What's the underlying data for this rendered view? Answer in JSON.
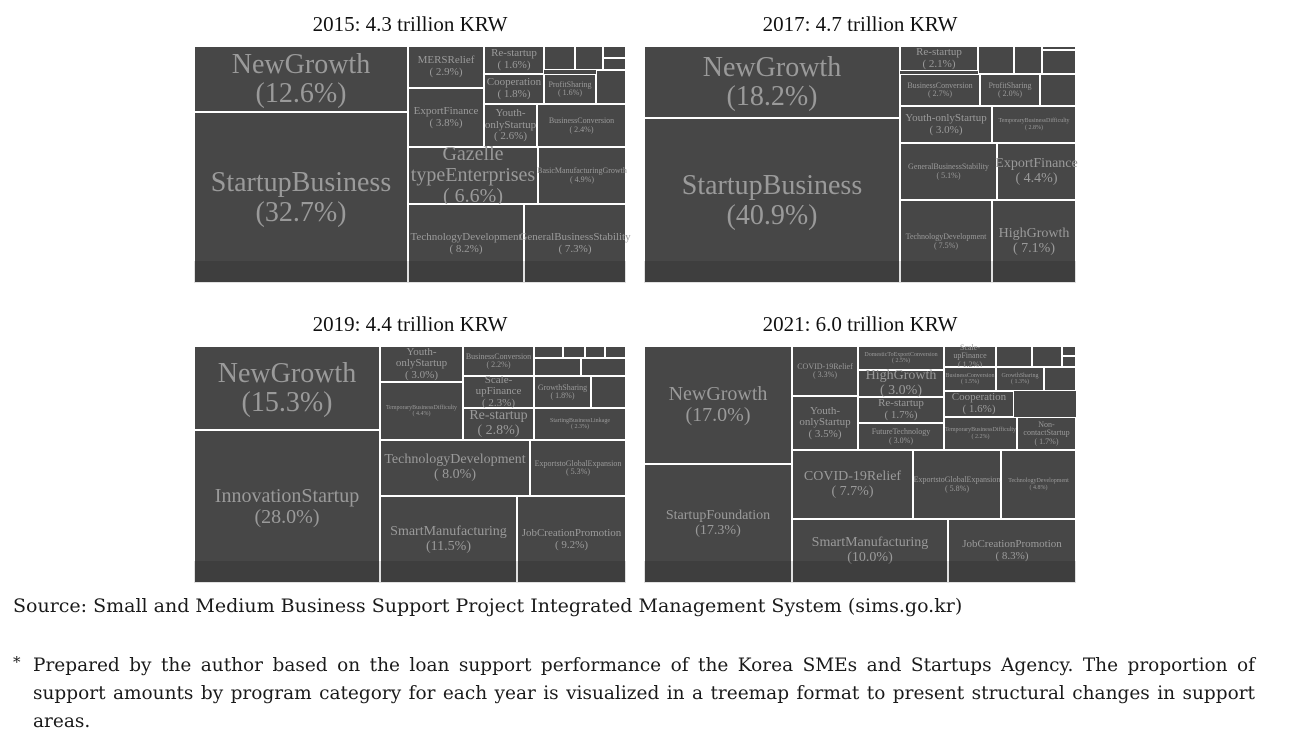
{
  "chart_data": [
    {
      "type": "treemap",
      "title": "2015: 4.3 trillion KRW",
      "nodes": [
        {
          "name": "StartupBusiness",
          "value": 32.7
        },
        {
          "name": "NewGrowth",
          "value": 12.6
        },
        {
          "name": "TechnologyDevelopment",
          "value": 8.2
        },
        {
          "name": "GeneralBusinessStability",
          "value": 7.3
        },
        {
          "name": "Gazelle typeEnterprises",
          "value": 6.6
        },
        {
          "name": "BasicManufacturingGrowth",
          "value": 4.9
        },
        {
          "name": "ExportFinance",
          "value": 3.8
        },
        {
          "name": "MERSRelief",
          "value": 2.9
        },
        {
          "name": "Youth-onlyStartup",
          "value": 2.6
        },
        {
          "name": "BusinessConversion",
          "value": 2.4
        },
        {
          "name": "Cooperation",
          "value": 1.8
        },
        {
          "name": "Re-startup",
          "value": 1.6
        },
        {
          "name": "ProfitSharing",
          "value": 1.6
        }
      ]
    },
    {
      "type": "treemap",
      "title": "2017: 4.7 trillion KRW",
      "nodes": [
        {
          "name": "StartupBusiness",
          "value": 40.9
        },
        {
          "name": "NewGrowth",
          "value": 18.2
        },
        {
          "name": "TechnologyDevelopment",
          "value": 7.5
        },
        {
          "name": "HighGrowth",
          "value": 7.1
        },
        {
          "name": "GeneralBusinessStability",
          "value": 5.1
        },
        {
          "name": "ExportFinance",
          "value": 4.4
        },
        {
          "name": "Youth-onlyStartup",
          "value": 3.0
        },
        {
          "name": "TemporaryBusinessDifficulty",
          "value": 2.8
        },
        {
          "name": "BusinessConversion",
          "value": 2.7
        },
        {
          "name": "Re-startup",
          "value": 2.1
        },
        {
          "name": "ProfitSharing",
          "value": 2.0
        }
      ]
    },
    {
      "type": "treemap",
      "title": "2019: 4.4 trillion KRW",
      "nodes": [
        {
          "name": "InnovationStartup",
          "value": 28.0
        },
        {
          "name": "NewGrowth",
          "value": 15.3
        },
        {
          "name": "SmartManufacturing",
          "value": 11.5
        },
        {
          "name": "JobCreationPromotion",
          "value": 9.2
        },
        {
          "name": "TechnologyDevelopment",
          "value": 8.0
        },
        {
          "name": "ExportstoGlobalExpansion",
          "value": 5.3
        },
        {
          "name": "TemporaryBusinessDifficulty",
          "value": 4.4
        },
        {
          "name": "Youth-onlyStartup",
          "value": 3.0
        },
        {
          "name": "Re-startup",
          "value": 2.8
        },
        {
          "name": "Scale-upFinance",
          "value": 2.3
        },
        {
          "name": "StartingBusinessLinkage",
          "value": 2.3
        },
        {
          "name": "BusinessConversion",
          "value": 2.2
        },
        {
          "name": "GrowthSharing",
          "value": 1.8
        }
      ]
    },
    {
      "type": "treemap",
      "title": "2021: 6.0 trillion KRW",
      "nodes": [
        {
          "name": "StartupFoundation",
          "value": 17.3
        },
        {
          "name": "NewGrowth",
          "value": 17.0
        },
        {
          "name": "SmartManufacturing",
          "value": 10.0
        },
        {
          "name": "JobCreationPromotion",
          "value": 8.3
        },
        {
          "name": "COVID-19Relief",
          "value": 7.7
        },
        {
          "name": "ExportstoGlobalExpansion",
          "value": 5.8
        },
        {
          "name": "TechnologyDevelopment",
          "value": 4.8
        },
        {
          "name": "Youth-onlyStartup",
          "value": 3.5
        },
        {
          "name": "COVID-19Relief",
          "value": 3.3
        },
        {
          "name": "HighGrowth",
          "value": 3.0
        },
        {
          "name": "FutureTechnology",
          "value": 3.0
        },
        {
          "name": "DomesticToExportConversion",
          "value": 2.5
        },
        {
          "name": "TemporaryBusinessDifficulty",
          "value": 2.2
        },
        {
          "name": "Re-startup",
          "value": 1.7
        },
        {
          "name": "Non-contactStartup",
          "value": 1.7
        },
        {
          "name": "Cooperation",
          "value": 1.6
        },
        {
          "name": "BusinessConversion",
          "value": 1.5
        },
        {
          "name": "GrowthSharing",
          "value": 1.3
        },
        {
          "name": "Scale-upFinance",
          "value": 1.2
        }
      ]
    }
  ],
  "panels": [
    {
      "title": "2015: 4.3 trillion KRW",
      "tiles": [
        {
          "label": "NewGrowth",
          "value": "(12.6%)",
          "tier": 1
        },
        {
          "label": "StartupBusiness",
          "value": "(32.7%)",
          "tier": 1
        },
        {
          "label": "MERSRelief",
          "value": "( 2.9%)",
          "tier": 4
        },
        {
          "label": "Re-startup",
          "value": "( 1.6%)",
          "tier": 4
        },
        {
          "label": "",
          "value": "",
          "tier": 0
        },
        {
          "label": "",
          "value": "",
          "tier": 0
        },
        {
          "label": "",
          "value": "",
          "tier": 0
        },
        {
          "label": "",
          "value": "",
          "tier": 0
        },
        {
          "label": "Cooperation",
          "value": "( 1.8%)",
          "tier": 4
        },
        {
          "label": "ProfitSharing",
          "value": "( 1.6%)",
          "tier": 5
        },
        {
          "label": "",
          "value": "",
          "tier": 0
        },
        {
          "label": "ExportFinance",
          "value": "( 3.8%)",
          "tier": 4
        },
        {
          "label": "Youth-\nonlyStartup",
          "value": "( 2.6%)",
          "tier": 4
        },
        {
          "label": "BusinessConversion",
          "value": "( 2.4%)",
          "tier": 5
        },
        {
          "label": "Gazelle\ntypeEnterprises",
          "value": "( 6.6%)",
          "tier": 2
        },
        {
          "label": "BasicManufacturingGrowth",
          "value": "( 4.9%)",
          "tier": 5
        },
        {
          "label": "TechnologyDevelopment",
          "value": "( 8.2%)",
          "tier": 4
        },
        {
          "label": "GeneralBusinessStability",
          "value": "( 7.3%)",
          "tier": 4
        }
      ]
    },
    {
      "title": "2017: 4.7 trillion KRW",
      "tiles": [
        {
          "label": "NewGrowth",
          "value": "(18.2%)",
          "tier": 1
        },
        {
          "label": "StartupBusiness",
          "value": "(40.9%)",
          "tier": 1
        },
        {
          "label": "Re-startup",
          "value": "( 2.1%)",
          "tier": 4
        },
        {
          "label": "",
          "value": "",
          "tier": 0
        },
        {
          "label": "",
          "value": "",
          "tier": 0
        },
        {
          "label": "",
          "value": "",
          "tier": 0
        },
        {
          "label": "",
          "value": "",
          "tier": 0
        },
        {
          "label": "BusinessConversion",
          "value": "( 2.7%)",
          "tier": 5
        },
        {
          "label": "ProfitSharing",
          "value": "( 2.0%)",
          "tier": 5
        },
        {
          "label": "",
          "value": "",
          "tier": 0
        },
        {
          "label": "Youth-onlyStartup",
          "value": "( 3.0%)",
          "tier": 4
        },
        {
          "label": "TemporaryBusinessDifficulty",
          "value": "( 2.8%)",
          "tier": 6
        },
        {
          "label": "GeneralBusinessStability",
          "value": "( 5.1%)",
          "tier": 5
        },
        {
          "label": "ExportFinance",
          "value": "( 4.4%)",
          "tier": 3
        },
        {
          "label": "TechnologyDevelopment",
          "value": "( 7.5%)",
          "tier": 5
        },
        {
          "label": "HighGrowth",
          "value": "( 7.1%)",
          "tier": 3
        }
      ]
    },
    {
      "title": "2019: 4.4 trillion KRW",
      "tiles": [
        {
          "label": "NewGrowth",
          "value": "(15.3%)",
          "tier": 1
        },
        {
          "label": "InnovationStartup",
          "value": "(28.0%)",
          "tier": 2
        },
        {
          "label": "Youth-\nonlyStartup",
          "value": "( 3.0%)",
          "tier": 4
        },
        {
          "label": "TemporaryBusinessDifficulty",
          "value": "( 4.4%)",
          "tier": 6
        },
        {
          "label": "BusinessConversion",
          "value": "( 2.2%)",
          "tier": 5
        },
        {
          "label": "",
          "value": "",
          "tier": 0
        },
        {
          "label": "",
          "value": "",
          "tier": 0
        },
        {
          "label": "",
          "value": "",
          "tier": 0
        },
        {
          "label": "",
          "value": "",
          "tier": 0
        },
        {
          "label": "",
          "value": "",
          "tier": 0
        },
        {
          "label": "",
          "value": "",
          "tier": 0
        },
        {
          "label": "Scale-upFinance",
          "value": "( 2.3%)",
          "tier": 4
        },
        {
          "label": "GrowthSharing",
          "value": "( 1.8%)",
          "tier": 5
        },
        {
          "label": "",
          "value": "",
          "tier": 0
        },
        {
          "label": "Re-startup",
          "value": "( 2.8%)",
          "tier": 3
        },
        {
          "label": "StartingBusinessLinkage",
          "value": "( 2.3%)",
          "tier": 6
        },
        {
          "label": "TechnologyDevelopment",
          "value": "( 8.0%)",
          "tier": 3
        },
        {
          "label": "ExportstoGlobalExpansion",
          "value": "( 5.3%)",
          "tier": 5
        },
        {
          "label": "SmartManufacturing",
          "value": "(11.5%)",
          "tier": 3
        },
        {
          "label": "JobCreationPromotion",
          "value": "( 9.2%)",
          "tier": 4
        }
      ]
    },
    {
      "title": "2021: 6.0 trillion KRW",
      "tiles": [
        {
          "label": "NewGrowth",
          "value": "(17.0%)",
          "tier": 2
        },
        {
          "label": "StartupFoundation",
          "value": "(17.3%)",
          "tier": 3
        },
        {
          "label": "COVID-19Relief",
          "value": "( 3.3%)",
          "tier": 5
        },
        {
          "label": "DomesticToExportConversion",
          "value": "( 2.5%)",
          "tier": 6
        },
        {
          "label": "Scale-upFinance",
          "value": "( 1.2%)",
          "tier": 5
        },
        {
          "label": "",
          "value": "",
          "tier": 0
        },
        {
          "label": "",
          "value": "",
          "tier": 0
        },
        {
          "label": "",
          "value": "",
          "tier": 0
        },
        {
          "label": "",
          "value": "",
          "tier": 0
        },
        {
          "label": "HighGrowth",
          "value": "( 3.0%)",
          "tier": 3
        },
        {
          "label": "BusinessConversion",
          "value": "( 1.5%)",
          "tier": 6
        },
        {
          "label": "GrowthSharing",
          "value": "( 1.3%)",
          "tier": 6
        },
        {
          "label": "",
          "value": "",
          "tier": 0
        },
        {
          "label": "Youth-\nonlyStartup",
          "value": "( 3.5%)",
          "tier": 4
        },
        {
          "label": "Re-startup",
          "value": "( 1.7%)",
          "tier": 4
        },
        {
          "label": "Cooperation",
          "value": "( 1.6%)",
          "tier": 4
        },
        {
          "label": "FutureTechnology",
          "value": "( 3.0%)",
          "tier": 5
        },
        {
          "label": "TemporaryBusinessDifficulty",
          "value": "( 2.2%)",
          "tier": 6
        },
        {
          "label": "Non-\ncontactStartup",
          "value": "( 1.7%)",
          "tier": 5
        },
        {
          "label": "COVID-19Relief",
          "value": "( 7.7%)",
          "tier": 3
        },
        {
          "label": "ExportstoGlobalExpansion",
          "value": "( 5.8%)",
          "tier": 5
        },
        {
          "label": "TechnologyDevelopment",
          "value": "( 4.8%)",
          "tier": 6
        },
        {
          "label": "SmartManufacturing",
          "value": "(10.0%)",
          "tier": 3
        },
        {
          "label": "JobCreationPromotion",
          "value": "( 8.3%)",
          "tier": 4
        }
      ]
    }
  ],
  "source": "Source: Small and Medium Business Support Project Integrated Management System (sims.go.kr)",
  "note_mark": "*",
  "note": "Prepared by the author based on the loan support performance of the Korea SMEs and Startups Agency. The proportion of support amounts by program category for each year is visualized in a treemap format to present structural changes in support areas.",
  "colors": {
    "tile": "#474747",
    "tile_text": "#9a9a9a",
    "border": "#ffffff"
  }
}
